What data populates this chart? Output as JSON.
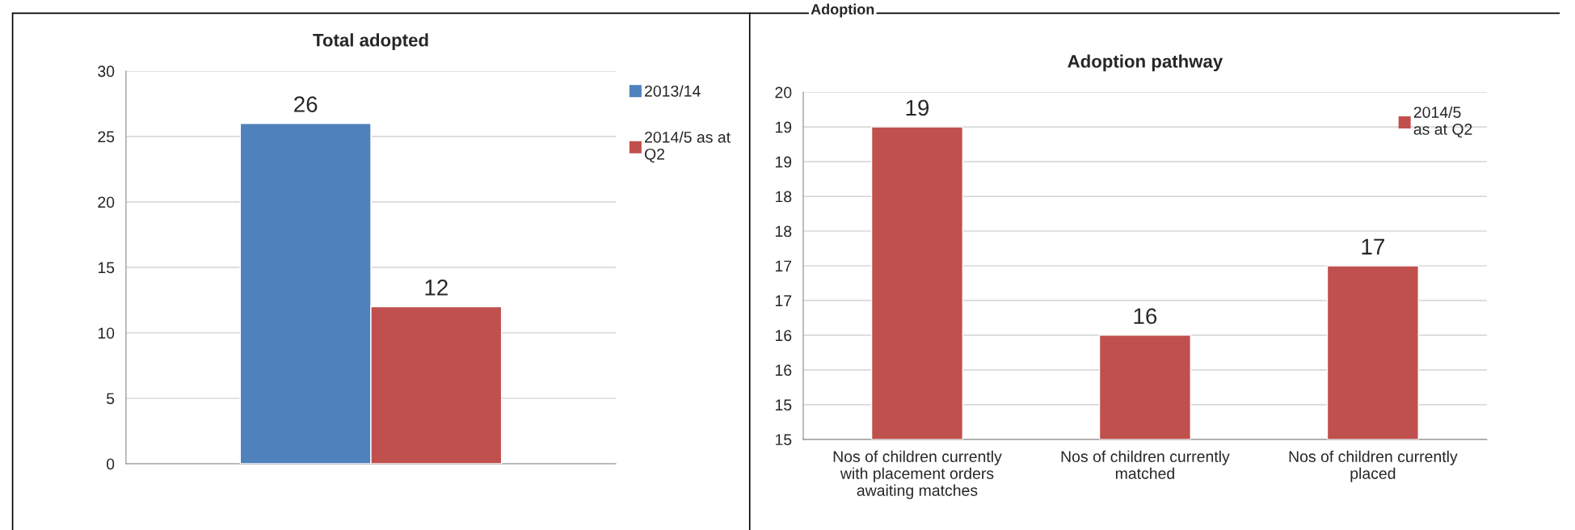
{
  "chart_data": [
    {
      "type": "bar",
      "title": "Total adopted",
      "categories": [
        null
      ],
      "series": [
        {
          "name": "2013/14",
          "color": "#4f81bd",
          "values": [
            26
          ]
        },
        {
          "name": "2014/5 as at\nQ2",
          "color": "#c0504d",
          "values": [
            12
          ]
        }
      ],
      "ylim": [
        0,
        30
      ],
      "yticks": [
        0,
        5,
        10,
        15,
        20,
        25,
        30
      ],
      "grid": "y",
      "legend": "right",
      "data_labels": true
    },
    {
      "type": "bar",
      "title": "Adoption pathway",
      "annotations": [
        "Adoption"
      ],
      "categories": [
        "Nos of children currently\nwith placement orders\nawaiting matches",
        "Nos of children currently\nmatched",
        "Nos of children currently\nplaced"
      ],
      "series": [
        {
          "name": "2014/5\nas at Q2",
          "color": "#c0504d",
          "values": [
            19.5,
            16.5,
            17.5
          ],
          "value_labels": [
            "19",
            "16",
            "17"
          ]
        }
      ],
      "ylim": [
        15,
        20
      ],
      "yticks": [
        15,
        {
          "value": 15.5,
          "label": "15"
        },
        16,
        {
          "value": 16.5,
          "label": "16"
        },
        17,
        {
          "value": 17.5,
          "label": "17"
        },
        18,
        {
          "value": 18.5,
          "label": "18"
        },
        19,
        {
          "value": 19.5,
          "label": "19"
        },
        20
      ],
      "grid": "y",
      "legend": "top right"
    }
  ]
}
